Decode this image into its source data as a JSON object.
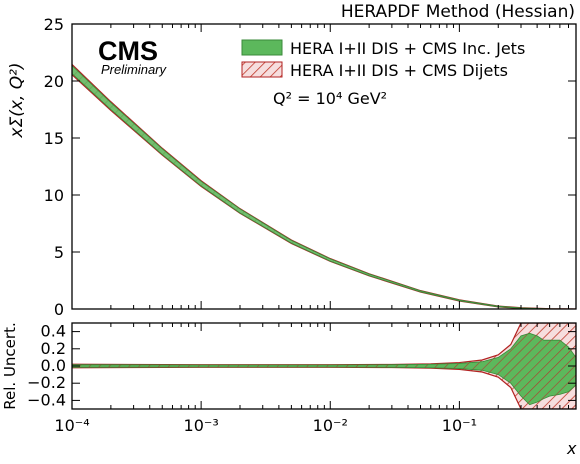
{
  "header": {
    "title": "HERAPDF Method (Hessian)",
    "experiment": "CMS",
    "status": "Preliminary"
  },
  "legend": {
    "items": [
      {
        "label": "HERA I+II DIS + CMS Inc. Jets",
        "style": "solid",
        "fill": "#5cb85c",
        "edge": "#3a8a3a"
      },
      {
        "label": "HERA I+II DIS + CMS Dijets",
        "style": "hatched",
        "fill": "#f3d6d6",
        "edge": "#b22222"
      }
    ]
  },
  "annotation": {
    "q2": "Q² = 10⁴ GeV²"
  },
  "chart_data": [
    {
      "type": "area",
      "name": "top-panel",
      "ylabel": "xΣ(x, Q²)",
      "xlabel": "",
      "xscale": "log",
      "xlim": [
        0.0001,
        0.8
      ],
      "ylim": [
        0,
        25
      ],
      "x_ticks": [
        "10⁻⁴",
        "10⁻³",
        "10⁻²",
        "10⁻¹"
      ],
      "y_ticks": [
        "0",
        "5",
        "10",
        "15",
        "20",
        "25"
      ],
      "x": [
        0.0001,
        0.0002,
        0.0005,
        0.001,
        0.002,
        0.005,
        0.01,
        0.02,
        0.05,
        0.1,
        0.2,
        0.3,
        0.5,
        0.8
      ],
      "series": [
        {
          "name": "HERA I+II DIS + CMS Inc. Jets",
          "values": [
            21.0,
            17.8,
            13.8,
            11.0,
            8.6,
            5.9,
            4.3,
            3.0,
            1.55,
            0.75,
            0.22,
            0.08,
            0.015,
            0.002
          ],
          "unc": [
            0.35,
            0.3,
            0.25,
            0.2,
            0.18,
            0.12,
            0.1,
            0.07,
            0.05,
            0.04,
            0.03,
            0.02,
            0.01,
            0.002
          ]
        },
        {
          "name": "HERA I+II DIS + CMS Dijets",
          "values": [
            21.0,
            17.8,
            13.8,
            11.0,
            8.6,
            5.9,
            4.3,
            3.0,
            1.55,
            0.75,
            0.22,
            0.08,
            0.015,
            0.002
          ],
          "unc": [
            0.45,
            0.38,
            0.3,
            0.25,
            0.2,
            0.15,
            0.12,
            0.09,
            0.06,
            0.05,
            0.04,
            0.03,
            0.012,
            0.003
          ]
        }
      ]
    },
    {
      "type": "area",
      "name": "ratio-panel",
      "ylabel": "Rel. Uncert.",
      "xlabel": "x",
      "xscale": "log",
      "xlim": [
        0.0001,
        0.8
      ],
      "ylim": [
        -0.5,
        0.5
      ],
      "x_ticks": [
        "10⁻⁴",
        "10⁻³",
        "10⁻²",
        "10⁻¹"
      ],
      "y_ticks": [
        "−0.4",
        "−0.2",
        "0.0",
        "0.2",
        "0.4"
      ],
      "x": [
        0.0001,
        0.001,
        0.01,
        0.03,
        0.06,
        0.1,
        0.15,
        0.2,
        0.25,
        0.3,
        0.35,
        0.4,
        0.45,
        0.5,
        0.6,
        0.7,
        0.8
      ],
      "series": [
        {
          "name": "HERA I+II DIS + CMS Inc. Jets",
          "upper": [
            0.015,
            0.012,
            0.012,
            0.015,
            0.02,
            0.03,
            0.05,
            0.1,
            0.2,
            0.35,
            0.38,
            0.35,
            0.3,
            0.3,
            0.3,
            0.22,
            0.1
          ],
          "lower": [
            -0.015,
            -0.012,
            -0.012,
            -0.015,
            -0.02,
            -0.03,
            -0.05,
            -0.1,
            -0.2,
            -0.35,
            -0.45,
            -0.42,
            -0.38,
            -0.35,
            -0.33,
            -0.3,
            -0.22
          ]
        },
        {
          "name": "HERA I+II DIS + CMS Dijets",
          "upper": [
            0.02,
            0.015,
            0.015,
            0.018,
            0.025,
            0.04,
            0.07,
            0.13,
            0.25,
            0.5,
            0.5,
            0.5,
            0.5,
            0.5,
            0.5,
            0.5,
            0.5
          ],
          "lower": [
            -0.02,
            -0.015,
            -0.015,
            -0.018,
            -0.025,
            -0.04,
            -0.07,
            -0.13,
            -0.25,
            -0.5,
            -0.5,
            -0.5,
            -0.5,
            -0.5,
            -0.5,
            -0.5,
            -0.5
          ]
        }
      ]
    }
  ]
}
